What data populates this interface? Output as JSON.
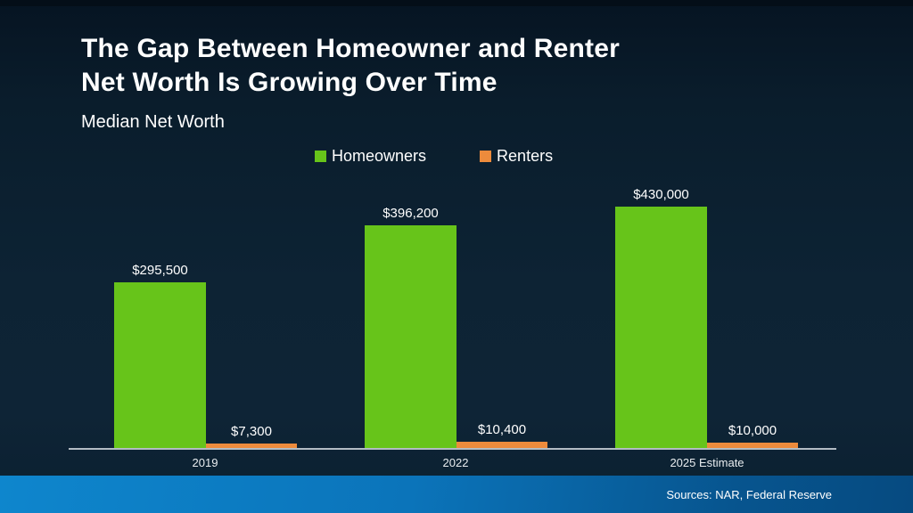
{
  "header": {
    "title_line1": "The Gap Between Homeowner and Renter",
    "title_line2": "Net Worth Is Growing Over Time",
    "subtitle": "Median Net Worth"
  },
  "legend": {
    "items": [
      {
        "label": "Homeowners",
        "color": "#67c41a"
      },
      {
        "label": "Renters",
        "color": "#ed8b3c"
      }
    ]
  },
  "chart_data": {
    "type": "bar",
    "title": "Median Net Worth",
    "categories": [
      "2019",
      "2022",
      "2025 Estimate"
    ],
    "series": [
      {
        "name": "Homeowners",
        "color": "#67c41a",
        "values": [
          295500,
          396200,
          430000
        ],
        "value_labels": [
          "$295,500",
          "$396,200",
          "$430,000"
        ]
      },
      {
        "name": "Renters",
        "color": "#ed8b3c",
        "values": [
          7300,
          10400,
          10000
        ],
        "value_labels": [
          "$7,300",
          "$10,400",
          "$10,000"
        ]
      }
    ],
    "ylim": [
      0,
      430000
    ],
    "grid": false,
    "legend_position": "top",
    "value_labels_shown": true,
    "axis_line_color": "#b3bcc4",
    "background_color": "#0d2334"
  },
  "footer": {
    "source_text": "Sources: NAR, Federal Reserve"
  }
}
